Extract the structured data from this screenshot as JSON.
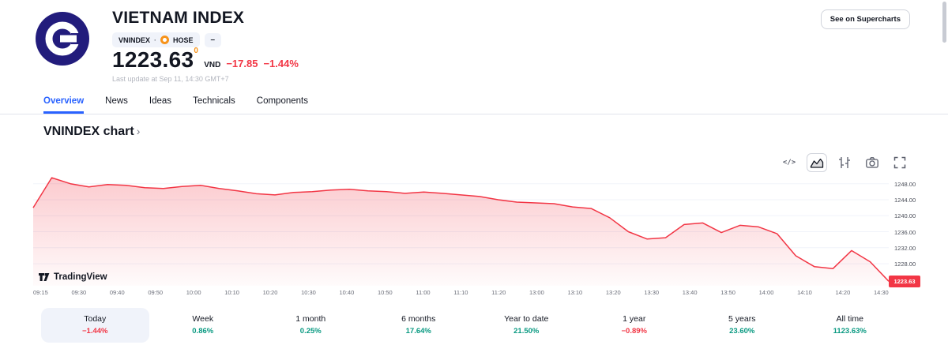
{
  "header": {
    "title": "VIETNAM INDEX",
    "symbol": "VNINDEX",
    "dot_separator": "·",
    "exchange": "HOSE",
    "market_status_glyph": "–",
    "price": "1223.63",
    "price_superscript": "0",
    "currency": "VND",
    "change_abs": "−17.85",
    "change_pct": "−1.44%",
    "last_update": "Last update at Sep 11, 14:30 GMT+7",
    "supercharts_button": "See on Supercharts"
  },
  "tabs": [
    {
      "label": "Overview",
      "active": true
    },
    {
      "label": "News"
    },
    {
      "label": "Ideas"
    },
    {
      "label": "Technicals"
    },
    {
      "label": "Components"
    }
  ],
  "section": {
    "title": "VNINDEX chart",
    "chevron": "›"
  },
  "toolbar": {
    "code_icon": "</>",
    "icons": [
      "code-icon",
      "area-chart-icon",
      "bars-icon",
      "camera-icon",
      "fullscreen-icon"
    ]
  },
  "watermark": "TradingView",
  "chart_data": {
    "type": "area",
    "title": "VNINDEX intraday",
    "x_labels": [
      "09:15",
      "09:30",
      "09:40",
      "09:50",
      "10:00",
      "10:10",
      "10:20",
      "10:30",
      "10:40",
      "10:50",
      "11:00",
      "11:10",
      "11:20",
      "13:00",
      "13:10",
      "13:20",
      "13:30",
      "13:40",
      "13:50",
      "14:00",
      "14:10",
      "14:20",
      "14:30"
    ],
    "values": [
      1242.0,
      1249.5,
      1248.0,
      1247.2,
      1247.8,
      1247.6,
      1247.0,
      1246.8,
      1247.3,
      1247.6,
      1246.8,
      1246.2,
      1245.5,
      1245.2,
      1245.8,
      1246.0,
      1246.4,
      1246.6,
      1246.2,
      1246.0,
      1245.6,
      1245.9,
      1245.6,
      1245.2,
      1244.8,
      1244.0,
      1243.4,
      1243.2,
      1243.0,
      1242.2,
      1241.8,
      1239.5,
      1236.0,
      1234.2,
      1234.5,
      1237.8,
      1238.2,
      1235.8,
      1237.6,
      1237.2,
      1235.5,
      1230.0,
      1227.3,
      1226.8,
      1231.3,
      1228.5,
      1223.63
    ],
    "y_ticks": [
      "1248.00",
      "1244.00",
      "1240.00",
      "1236.00",
      "1232.00",
      "1228.00"
    ],
    "y_tick_values": [
      1248,
      1244,
      1240,
      1236,
      1232,
      1228
    ],
    "ylim": [
      1222.5,
      1250.5
    ],
    "last_price": 1223.63,
    "last_price_label": "1223.63",
    "line_color": "#F23645",
    "fill_opacity_top": 0.26,
    "fill_opacity_bottom": 0.02,
    "grid": true,
    "xlabel": "",
    "ylabel": ""
  },
  "periods": [
    {
      "label": "Today",
      "value": "−1.44%",
      "direction": "down",
      "active": true
    },
    {
      "label": "Week",
      "value": "0.86%",
      "direction": "up"
    },
    {
      "label": "1 month",
      "value": "0.25%",
      "direction": "up"
    },
    {
      "label": "6 months",
      "value": "17.64%",
      "direction": "up"
    },
    {
      "label": "Year to date",
      "value": "21.50%",
      "direction": "up"
    },
    {
      "label": "1 year",
      "value": "−0.89%",
      "direction": "down"
    },
    {
      "label": "5 years",
      "value": "23.60%",
      "direction": "up"
    },
    {
      "label": "All time",
      "value": "1123.63%",
      "direction": "up"
    }
  ],
  "colors": {
    "up": "#089981",
    "down": "#F23645",
    "accent": "#2962FF",
    "line": "#F23645"
  }
}
